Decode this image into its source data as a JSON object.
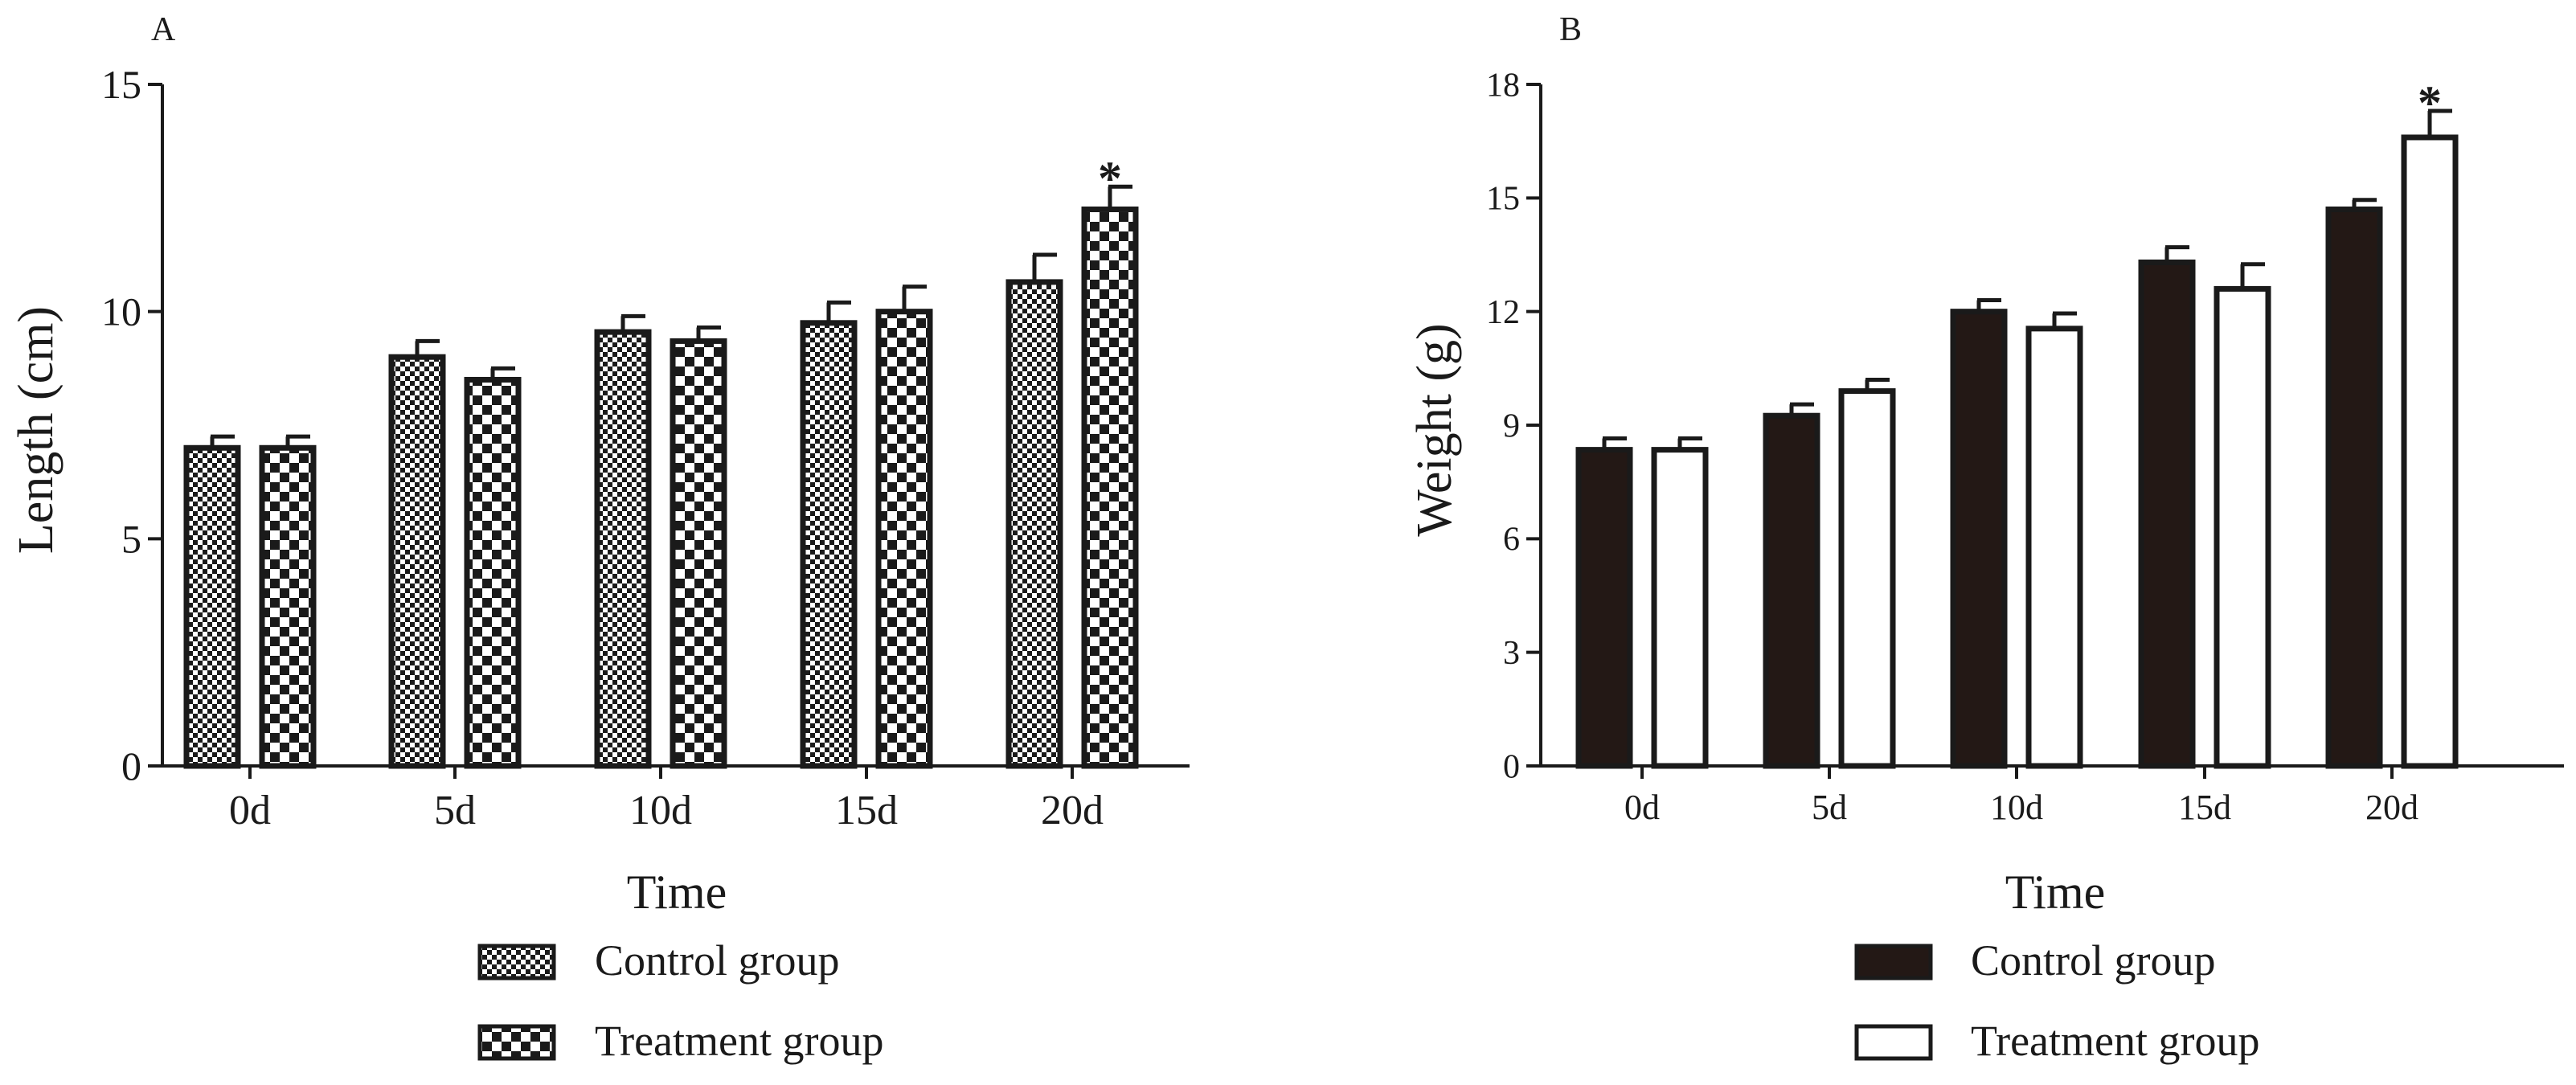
{
  "figure": {
    "panels": [
      {
        "id": "A",
        "panel_label": "A",
        "chart_data": {
          "type": "bar",
          "title": "",
          "xlabel": "Time",
          "ylabel": "Length (cm)",
          "categories": [
            "0d",
            "5d",
            "10d",
            "15d",
            "20d"
          ],
          "ylim": [
            0,
            15
          ],
          "yticks": [
            0,
            5,
            10,
            15
          ],
          "series": [
            {
              "name": "Control group",
              "style": "fine-checker",
              "values": [
                7.0,
                9.0,
                9.55,
                9.75,
                10.65
              ],
              "errors": [
                0.25,
                0.35,
                0.35,
                0.45,
                0.6
              ]
            },
            {
              "name": "Treatment group",
              "style": "coarse-checker",
              "values": [
                7.0,
                8.5,
                9.35,
                10.0,
                12.25
              ],
              "errors": [
                0.25,
                0.25,
                0.3,
                0.55,
                0.5
              ]
            }
          ],
          "annotations": [
            {
              "series": 1,
              "category": "20d",
              "text": "*"
            }
          ],
          "legend": {
            "position": "bottom",
            "items": [
              "Control group",
              "Treatment group"
            ]
          }
        }
      },
      {
        "id": "B",
        "panel_label": "B",
        "chart_data": {
          "type": "bar",
          "title": "",
          "xlabel": "Time",
          "ylabel": "Weight (g)",
          "categories": [
            "0d",
            "5d",
            "10d",
            "15d",
            "20d"
          ],
          "ylim": [
            0,
            18
          ],
          "yticks": [
            0,
            3,
            6,
            9,
            12,
            15,
            18
          ],
          "series": [
            {
              "name": "Control group",
              "style": "solid-dark",
              "values": [
                8.35,
                9.25,
                12.0,
                13.3,
                14.7
              ],
              "errors": [
                0.3,
                0.3,
                0.3,
                0.4,
                0.25
              ]
            },
            {
              "name": "Treatment group",
              "style": "hollow",
              "values": [
                8.35,
                9.9,
                11.55,
                12.6,
                16.6
              ],
              "errors": [
                0.3,
                0.3,
                0.4,
                0.65,
                0.7
              ]
            }
          ],
          "annotations": [
            {
              "series": 1,
              "category": "20d",
              "text": "*"
            }
          ],
          "legend": {
            "position": "bottom",
            "items": [
              "Control group",
              "Treatment group"
            ]
          }
        }
      }
    ]
  },
  "colors": {
    "ink": "#1a1a1a",
    "dark_fill": "#231815",
    "background": "#ffffff"
  }
}
